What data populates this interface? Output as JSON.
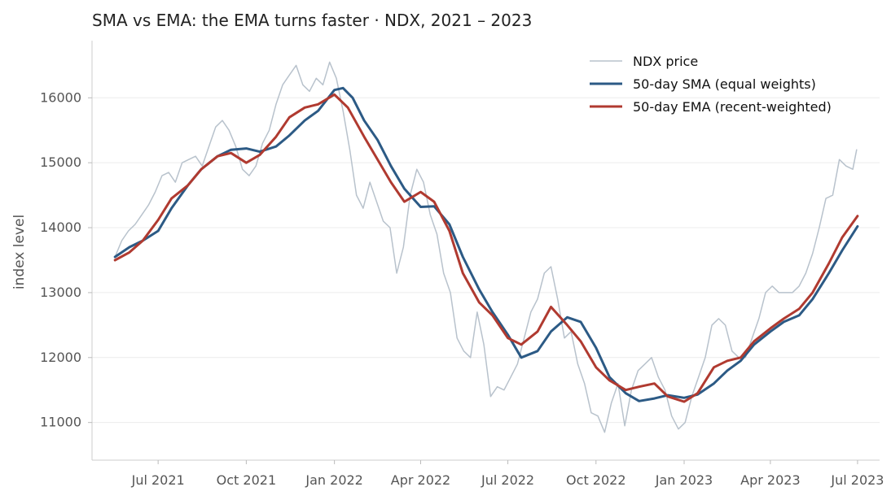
{
  "chart_data": {
    "type": "line",
    "title": "SMA vs EMA: the EMA turns faster  ·  NDX, 2021 – 2023",
    "xlabel": "",
    "ylabel": "index level",
    "xlim": [
      "2021-04-23",
      "2023-07-24"
    ],
    "ylim": [
      10420,
      16880
    ],
    "grid": {
      "y": true,
      "x": false
    },
    "legend_position": "top-right",
    "x_ticks": [
      {
        "date": "2021-07-01",
        "label": "Jul 2021"
      },
      {
        "date": "2021-10-01",
        "label": "Oct 2021"
      },
      {
        "date": "2022-01-01",
        "label": "Jan 2022"
      },
      {
        "date": "2022-04-01",
        "label": "Apr 2022"
      },
      {
        "date": "2022-07-01",
        "label": "Jul 2022"
      },
      {
        "date": "2022-10-01",
        "label": "Oct 2022"
      },
      {
        "date": "2023-01-01",
        "label": "Jan 2023"
      },
      {
        "date": "2023-04-01",
        "label": "Apr 2023"
      },
      {
        "date": "2023-07-01",
        "label": "Jul 2023"
      }
    ],
    "y_ticks": [
      11000,
      12000,
      13000,
      14000,
      15000,
      16000
    ],
    "series": [
      {
        "name": "NDX price",
        "color": "#b8c2cc",
        "points": [
          [
            "2021-05-17",
            13550
          ],
          [
            "2021-05-24",
            13800
          ],
          [
            "2021-05-31",
            13950
          ],
          [
            "2021-06-07",
            14050
          ],
          [
            "2021-06-14",
            14200
          ],
          [
            "2021-06-21",
            14350
          ],
          [
            "2021-06-28",
            14550
          ],
          [
            "2021-07-05",
            14800
          ],
          [
            "2021-07-12",
            14850
          ],
          [
            "2021-07-19",
            14700
          ],
          [
            "2021-07-26",
            15000
          ],
          [
            "2021-08-02",
            15050
          ],
          [
            "2021-08-09",
            15100
          ],
          [
            "2021-08-16",
            14950
          ],
          [
            "2021-08-23",
            15250
          ],
          [
            "2021-08-30",
            15550
          ],
          [
            "2021-09-06",
            15650
          ],
          [
            "2021-09-13",
            15500
          ],
          [
            "2021-09-20",
            15250
          ],
          [
            "2021-09-27",
            14900
          ],
          [
            "2021-10-04",
            14800
          ],
          [
            "2021-10-11",
            14950
          ],
          [
            "2021-10-18",
            15300
          ],
          [
            "2021-10-25",
            15500
          ],
          [
            "2021-11-01",
            15900
          ],
          [
            "2021-11-08",
            16200
          ],
          [
            "2021-11-15",
            16350
          ],
          [
            "2021-11-22",
            16500
          ],
          [
            "2021-11-29",
            16200
          ],
          [
            "2021-12-06",
            16100
          ],
          [
            "2021-12-13",
            16300
          ],
          [
            "2021-12-20",
            16200
          ],
          [
            "2021-12-27",
            16550
          ],
          [
            "2022-01-03",
            16300
          ],
          [
            "2022-01-10",
            15800
          ],
          [
            "2022-01-17",
            15200
          ],
          [
            "2022-01-24",
            14500
          ],
          [
            "2022-01-31",
            14300
          ],
          [
            "2022-02-07",
            14700
          ],
          [
            "2022-02-14",
            14400
          ],
          [
            "2022-02-21",
            14100
          ],
          [
            "2022-02-28",
            14000
          ],
          [
            "2022-03-07",
            13300
          ],
          [
            "2022-03-14",
            13700
          ],
          [
            "2022-03-21",
            14500
          ],
          [
            "2022-03-28",
            14900
          ],
          [
            "2022-04-04",
            14700
          ],
          [
            "2022-04-11",
            14200
          ],
          [
            "2022-04-18",
            13900
          ],
          [
            "2022-04-25",
            13300
          ],
          [
            "2022-05-02",
            13000
          ],
          [
            "2022-05-09",
            12300
          ],
          [
            "2022-05-16",
            12100
          ],
          [
            "2022-05-23",
            12000
          ],
          [
            "2022-05-30",
            12700
          ],
          [
            "2022-06-06",
            12200
          ],
          [
            "2022-06-13",
            11400
          ],
          [
            "2022-06-20",
            11550
          ],
          [
            "2022-06-27",
            11500
          ],
          [
            "2022-07-04",
            11700
          ],
          [
            "2022-07-11",
            11900
          ],
          [
            "2022-07-18",
            12300
          ],
          [
            "2022-07-25",
            12700
          ],
          [
            "2022-08-01",
            12900
          ],
          [
            "2022-08-08",
            13300
          ],
          [
            "2022-08-15",
            13400
          ],
          [
            "2022-08-22",
            12900
          ],
          [
            "2022-08-29",
            12300
          ],
          [
            "2022-09-05",
            12400
          ],
          [
            "2022-09-12",
            11900
          ],
          [
            "2022-09-19",
            11600
          ],
          [
            "2022-09-26",
            11150
          ],
          [
            "2022-10-03",
            11100
          ],
          [
            "2022-10-10",
            10850
          ],
          [
            "2022-10-17",
            11300
          ],
          [
            "2022-10-24",
            11600
          ],
          [
            "2022-10-31",
            10950
          ],
          [
            "2022-11-07",
            11500
          ],
          [
            "2022-11-14",
            11800
          ],
          [
            "2022-11-21",
            11900
          ],
          [
            "2022-11-28",
            12000
          ],
          [
            "2022-12-05",
            11700
          ],
          [
            "2022-12-12",
            11500
          ],
          [
            "2022-12-19",
            11100
          ],
          [
            "2022-12-26",
            10900
          ],
          [
            "2023-01-02",
            11000
          ],
          [
            "2023-01-09",
            11400
          ],
          [
            "2023-01-16",
            11700
          ],
          [
            "2023-01-23",
            12000
          ],
          [
            "2023-01-30",
            12500
          ],
          [
            "2023-02-06",
            12600
          ],
          [
            "2023-02-13",
            12500
          ],
          [
            "2023-02-20",
            12100
          ],
          [
            "2023-02-27",
            12000
          ],
          [
            "2023-03-06",
            12000
          ],
          [
            "2023-03-13",
            12300
          ],
          [
            "2023-03-20",
            12600
          ],
          [
            "2023-03-27",
            13000
          ],
          [
            "2023-04-03",
            13100
          ],
          [
            "2023-04-10",
            13000
          ],
          [
            "2023-04-17",
            13000
          ],
          [
            "2023-04-24",
            13000
          ],
          [
            "2023-05-01",
            13100
          ],
          [
            "2023-05-08",
            13300
          ],
          [
            "2023-05-15",
            13600
          ],
          [
            "2023-05-22",
            14000
          ],
          [
            "2023-05-29",
            14450
          ],
          [
            "2023-06-05",
            14500
          ],
          [
            "2023-06-12",
            15050
          ],
          [
            "2023-06-19",
            14950
          ],
          [
            "2023-06-26",
            14900
          ],
          [
            "2023-06-30",
            15200
          ]
        ]
      },
      {
        "name": "50-day SMA (equal weights)",
        "color": "#2c5a85",
        "points": [
          [
            "2021-05-17",
            13550
          ],
          [
            "2021-06-01",
            13700
          ],
          [
            "2021-06-15",
            13800
          ],
          [
            "2021-07-01",
            13950
          ],
          [
            "2021-07-15",
            14300
          ],
          [
            "2021-08-01",
            14650
          ],
          [
            "2021-08-15",
            14900
          ],
          [
            "2021-09-01",
            15100
          ],
          [
            "2021-09-15",
            15200
          ],
          [
            "2021-10-01",
            15220
          ],
          [
            "2021-10-15",
            15170
          ],
          [
            "2021-11-01",
            15250
          ],
          [
            "2021-11-15",
            15420
          ],
          [
            "2021-12-01",
            15650
          ],
          [
            "2021-12-15",
            15800
          ],
          [
            "2022-01-01",
            16120
          ],
          [
            "2022-01-10",
            16150
          ],
          [
            "2022-01-20",
            16000
          ],
          [
            "2022-02-01",
            15650
          ],
          [
            "2022-02-15",
            15350
          ],
          [
            "2022-03-01",
            14950
          ],
          [
            "2022-03-15",
            14600
          ],
          [
            "2022-04-01",
            14320
          ],
          [
            "2022-04-15",
            14330
          ],
          [
            "2022-05-01",
            14050
          ],
          [
            "2022-05-15",
            13550
          ],
          [
            "2022-06-01",
            13050
          ],
          [
            "2022-06-15",
            12700
          ],
          [
            "2022-07-01",
            12350
          ],
          [
            "2022-07-15",
            12000
          ],
          [
            "2022-08-01",
            12100
          ],
          [
            "2022-08-15",
            12400
          ],
          [
            "2022-09-01",
            12620
          ],
          [
            "2022-09-15",
            12550
          ],
          [
            "2022-10-01",
            12150
          ],
          [
            "2022-10-15",
            11700
          ],
          [
            "2022-11-01",
            11450
          ],
          [
            "2022-11-15",
            11330
          ],
          [
            "2022-12-01",
            11370
          ],
          [
            "2022-12-15",
            11420
          ],
          [
            "2023-01-01",
            11380
          ],
          [
            "2023-01-15",
            11430
          ],
          [
            "2023-02-01",
            11600
          ],
          [
            "2023-02-15",
            11800
          ],
          [
            "2023-03-01",
            11950
          ],
          [
            "2023-03-15",
            12200
          ],
          [
            "2023-04-01",
            12400
          ],
          [
            "2023-04-15",
            12550
          ],
          [
            "2023-05-01",
            12650
          ],
          [
            "2023-05-15",
            12900
          ],
          [
            "2023-06-01",
            13300
          ],
          [
            "2023-06-15",
            13650
          ],
          [
            "2023-07-01",
            14020
          ]
        ]
      },
      {
        "name": "50-day EMA (recent-weighted)",
        "color": "#b03a30",
        "points": [
          [
            "2021-05-17",
            13500
          ],
          [
            "2021-06-01",
            13620
          ],
          [
            "2021-06-15",
            13800
          ],
          [
            "2021-07-01",
            14120
          ],
          [
            "2021-07-15",
            14450
          ],
          [
            "2021-08-01",
            14650
          ],
          [
            "2021-08-15",
            14900
          ],
          [
            "2021-09-01",
            15100
          ],
          [
            "2021-09-15",
            15150
          ],
          [
            "2021-10-01",
            15000
          ],
          [
            "2021-10-15",
            15120
          ],
          [
            "2021-11-01",
            15400
          ],
          [
            "2021-11-15",
            15700
          ],
          [
            "2021-12-01",
            15850
          ],
          [
            "2021-12-15",
            15900
          ],
          [
            "2022-01-01",
            16050
          ],
          [
            "2022-01-15",
            15850
          ],
          [
            "2022-02-01",
            15400
          ],
          [
            "2022-02-15",
            15050
          ],
          [
            "2022-03-01",
            14700
          ],
          [
            "2022-03-15",
            14400
          ],
          [
            "2022-04-01",
            14550
          ],
          [
            "2022-04-15",
            14400
          ],
          [
            "2022-05-01",
            13950
          ],
          [
            "2022-05-15",
            13300
          ],
          [
            "2022-06-01",
            12850
          ],
          [
            "2022-06-15",
            12650
          ],
          [
            "2022-07-01",
            12300
          ],
          [
            "2022-07-15",
            12200
          ],
          [
            "2022-08-01",
            12400
          ],
          [
            "2022-08-15",
            12780
          ],
          [
            "2022-09-01",
            12500
          ],
          [
            "2022-09-15",
            12250
          ],
          [
            "2022-10-01",
            11850
          ],
          [
            "2022-10-15",
            11650
          ],
          [
            "2022-11-01",
            11500
          ],
          [
            "2022-11-15",
            11550
          ],
          [
            "2022-12-01",
            11600
          ],
          [
            "2022-12-15",
            11400
          ],
          [
            "2023-01-01",
            11320
          ],
          [
            "2023-01-15",
            11450
          ],
          [
            "2023-02-01",
            11850
          ],
          [
            "2023-02-15",
            11950
          ],
          [
            "2023-03-01",
            12000
          ],
          [
            "2023-03-15",
            12250
          ],
          [
            "2023-04-01",
            12450
          ],
          [
            "2023-04-15",
            12600
          ],
          [
            "2023-05-01",
            12750
          ],
          [
            "2023-05-15",
            13000
          ],
          [
            "2023-06-01",
            13450
          ],
          [
            "2023-06-15",
            13850
          ],
          [
            "2023-07-01",
            14180
          ]
        ]
      }
    ]
  }
}
